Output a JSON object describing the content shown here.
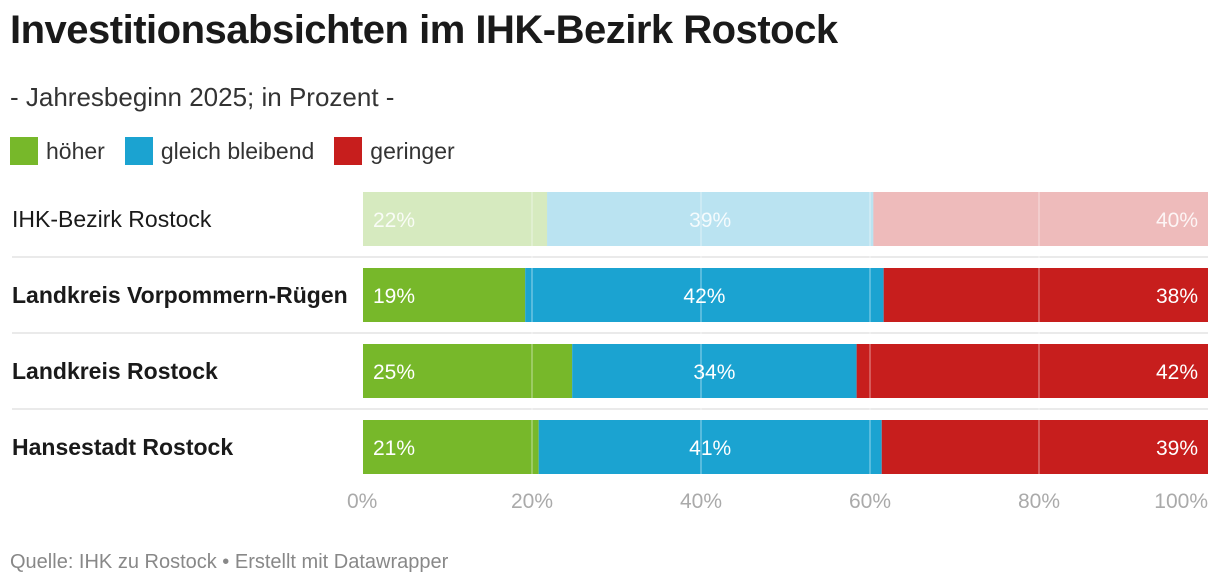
{
  "title": "Investitionsabsichten im IHK-Bezirk Rostock",
  "subtitle": "- Jahresbeginn 2025; in Prozent -",
  "legend": [
    {
      "label": "höher",
      "color": "#77b82a"
    },
    {
      "label": "gleich bleibend",
      "color": "#1ba3d1"
    },
    {
      "label": "geringer",
      "color": "#c71e1d"
    }
  ],
  "footer": "Quelle: IHK zu Rostock • Erstellt mit Datawrapper",
  "chart_data": {
    "type": "bar",
    "stacked": true,
    "orientation": "horizontal",
    "categories": [
      "IHK-Bezirk Rostock",
      "Landkreis Vorpommern-Rügen",
      "Landkreis Rostock",
      "Hansestadt Rostock"
    ],
    "series": [
      {
        "name": "höher",
        "values": [
          22,
          19,
          25,
          21
        ],
        "color": "#77b82a"
      },
      {
        "name": "gleich bleibend",
        "values": [
          39,
          42,
          34,
          41
        ],
        "color": "#1ba3d1"
      },
      {
        "name": "geringer",
        "values": [
          40,
          38,
          42,
          39
        ],
        "color": "#c71e1d"
      }
    ],
    "value_labels": [
      [
        "22%",
        "39%",
        "40%"
      ],
      [
        "19%",
        "42%",
        "38%"
      ],
      [
        "25%",
        "34%",
        "42%"
      ],
      [
        "21%",
        "41%",
        "39%"
      ]
    ],
    "highlighted_rows": [
      false,
      true,
      true,
      true
    ],
    "xlim": [
      0,
      100
    ],
    "x_ticks": [
      0,
      20,
      40,
      60,
      80,
      100
    ],
    "x_tick_labels": [
      "0%",
      "20%",
      "40%",
      "60%",
      "80%",
      "100%"
    ],
    "grid": true
  }
}
